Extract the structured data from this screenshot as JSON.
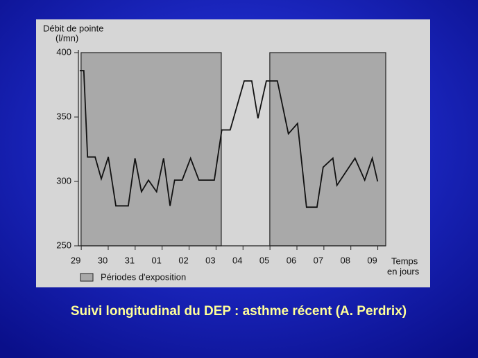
{
  "chart_data": {
    "type": "line",
    "title": "Suivi longitudinal du DEP : asthme récent (A. Perdrix)",
    "y_label": [
      "Débit de pointe",
      "(l/mn)"
    ],
    "x_label": [
      "Temps",
      "en jours"
    ],
    "x": [
      0.15,
      0.3,
      0.44,
      0.72,
      0.95,
      1.21,
      1.49,
      1.95,
      2.2,
      2.44,
      2.7,
      3.0,
      3.26,
      3.5,
      3.67,
      3.95,
      4.26,
      4.57,
      5.14,
      5.42,
      5.73,
      6.25,
      6.53,
      6.76,
      7.07,
      7.48,
      7.89,
      8.23,
      8.56,
      8.95,
      9.18,
      9.54,
      9.69,
      10.36,
      10.72,
      11.0,
      11.2
    ],
    "values": [
      386,
      386,
      319,
      319,
      302,
      319,
      281,
      281,
      318,
      292,
      301,
      292,
      318,
      281,
      301,
      301,
      318,
      301,
      301,
      340,
      340,
      378,
      378,
      349,
      378,
      378,
      337,
      345,
      280,
      280,
      311,
      318,
      297,
      318,
      301,
      318,
      300
    ],
    "color": "#111111",
    "exposure": {
      "name": "Périodes d'exposition",
      "periods": [
        [
          0.2,
          5.4
        ],
        [
          7.2,
          11.5
        ]
      ],
      "color": "#a9a9a9"
    },
    "xlim": [
      0.1,
      11.5
    ],
    "xticks": [
      {
        "value": 0,
        "label": "29"
      },
      {
        "value": 1,
        "label": "30"
      },
      {
        "value": 2,
        "label": "31"
      },
      {
        "value": 3,
        "label": "01"
      },
      {
        "value": 4,
        "label": "02"
      },
      {
        "value": 5,
        "label": "03"
      },
      {
        "value": 6,
        "label": "04"
      },
      {
        "value": 7,
        "label": "05"
      },
      {
        "value": 8,
        "label": "06"
      },
      {
        "value": 9,
        "label": "07"
      },
      {
        "value": 10,
        "label": "08"
      },
      {
        "value": 11,
        "label": "09"
      }
    ],
    "ylim": [
      250,
      400
    ],
    "yticks": [
      250,
      300,
      350,
      400
    ]
  }
}
